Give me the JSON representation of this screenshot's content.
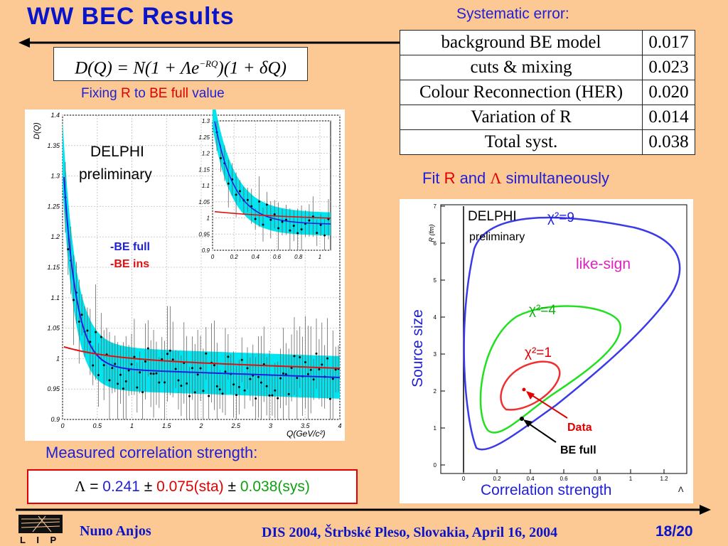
{
  "header": {
    "title": "WW BEC Results"
  },
  "formula": {
    "lhs": "D(Q) = N(1 + Λe",
    "exp": "−RQ",
    "rhs": ")(1 + δQ)"
  },
  "fixing": {
    "part1": "Fixing ",
    "part2": "R",
    "part3": " to ",
    "part4": "BE full",
    "part5": " value"
  },
  "systematics": {
    "title": "Systematic error:",
    "rows": [
      {
        "name": "background BE model",
        "value": "0.017"
      },
      {
        "name": "cuts & mixing",
        "value": "0.023"
      },
      {
        "name": "Colour Reconnection (HER)",
        "value": "0.020"
      },
      {
        "name": "Variation of R",
        "value": "0.014"
      },
      {
        "name": "Total syst.",
        "value": "0.038"
      }
    ]
  },
  "fit_label": {
    "part1": "Fit ",
    "part2": "R",
    "part3": " and ",
    "part4": "Λ",
    "part5": " simultaneously"
  },
  "left_plot": {
    "ylabel": "D(Q)",
    "xlabel": "Q(GeV/c²)",
    "label_line1": "DELPHI",
    "label_line2": "preliminary",
    "legend_blue": "-BE full",
    "legend_red": "-BE ins",
    "y_ticks": [
      "1.4",
      "1.35",
      "1.3",
      "1.25",
      "1.2",
      "1.15",
      "1.1",
      "1.05",
      "1",
      "0.95",
      "0.9"
    ],
    "x_ticks": [
      "0",
      "0.5",
      "1",
      "1.5",
      "2",
      "2.5",
      "3",
      "3.5",
      "4"
    ],
    "inset_y_ticks": [
      "1.3",
      "1.25",
      "1.2",
      "1.15",
      "1.1",
      "1.05",
      "1",
      "0.95",
      "0.9"
    ],
    "inset_x_ticks": [
      "0",
      "0.2",
      "0.4",
      "0.6",
      "0.8",
      "1"
    ]
  },
  "right_plot": {
    "ylabel": "Source size",
    "axis_label": "R (fm)",
    "xlabel": "Correlation strength",
    "x_axis_symbol": "Λ",
    "label_line1": "DELPHI",
    "label_line2": "preliminary",
    "chi9": "χ²=9",
    "chi4": "χ²=4",
    "chi1": "χ²=1",
    "like_sign": "like-sign",
    "data_label": "Data",
    "be_full_label": "BE full",
    "y_ticks": [
      "0",
      "1",
      "2",
      "3",
      "4",
      "5",
      "6",
      "7"
    ],
    "x_ticks": [
      "0",
      "0.2",
      "0.4",
      "0.6",
      "0.8",
      "1",
      "1.2"
    ]
  },
  "measured": {
    "label": "Measured correlation strength:",
    "symbol": "Λ",
    "eq": " = ",
    "value": "0.241",
    "pm1": " ± ",
    "stat": "0.075(sta)",
    "pm2": "  ±  ",
    "sys": "0.038(sys)"
  },
  "footer": {
    "logo_text": "L I P",
    "author": "Nuno Anjos",
    "conference": "DIS 2004, Štrbské Pleso, Slovakia, April 16, 2004",
    "page": "18/20"
  },
  "colors": {
    "title": "#0a14c8",
    "background": "#fcc994",
    "fit_band": "#00e5f0",
    "be_full": "#2020e0",
    "be_ins": "#e01010"
  }
}
